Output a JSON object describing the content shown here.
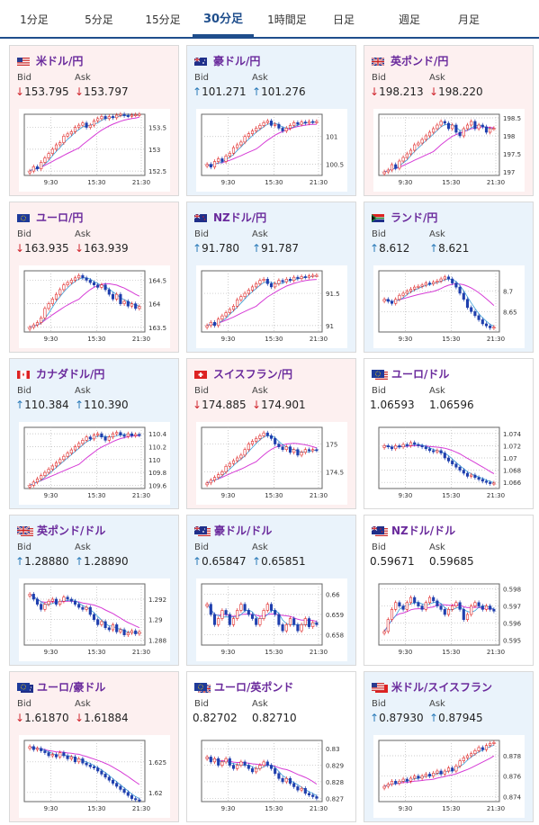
{
  "tabs": [
    {
      "label": "1分足",
      "active": false
    },
    {
      "label": "5分足",
      "active": false
    },
    {
      "label": "15分足",
      "active": false
    },
    {
      "label": "30分足",
      "active": true
    },
    {
      "label": "1時間足",
      "active": false
    },
    {
      "label": "日足",
      "active": false
    },
    {
      "label": "週足",
      "active": false
    },
    {
      "label": "月足",
      "active": false
    }
  ],
  "labels": {
    "bid": "Bid",
    "ask": "Ask"
  },
  "colors": {
    "up_candle": "#1f3fae",
    "down_candle": "#e02828",
    "ma_short": "#3a9fd8",
    "ma_long": "#d63cd6",
    "down_text": "#d0262e",
    "up_text": "#2a7ab8"
  },
  "pairs": [
    {
      "name": "米ドル/円",
      "flag": "flag-us-icon",
      "dir": "down",
      "bid": "153.795",
      "ask": "153.797",
      "chart_data": {
        "type": "candlestick",
        "x_ticks": [
          "9:30",
          "15:30",
          "21:30"
        ],
        "y_ticks": [
          "153.5",
          "153",
          "152.5"
        ],
        "ylim": [
          152.4,
          153.8
        ],
        "close": [
          152.5,
          152.6,
          152.55,
          152.7,
          152.8,
          152.9,
          153.0,
          153.1,
          153.15,
          153.3,
          153.35,
          153.4,
          153.5,
          153.55,
          153.6,
          153.5,
          153.55,
          153.65,
          153.7,
          153.75,
          153.7,
          153.75,
          153.72,
          153.78,
          153.8,
          153.77,
          153.76,
          153.78,
          153.79,
          153.8
        ]
      }
    },
    {
      "name": "豪ドル/円",
      "flag": "flag-au-icon",
      "dir": "up",
      "bid": "101.271",
      "ask": "101.276",
      "chart_data": {
        "type": "candlestick",
        "x_ticks": [
          "9:30",
          "15:30",
          "21:30"
        ],
        "y_ticks": [
          "101",
          "100.5"
        ],
        "ylim": [
          100.3,
          101.4
        ],
        "close": [
          100.5,
          100.45,
          100.55,
          100.6,
          100.55,
          100.65,
          100.7,
          100.8,
          100.85,
          100.9,
          101.0,
          101.05,
          101.1,
          101.15,
          101.2,
          101.25,
          101.28,
          101.2,
          101.22,
          101.15,
          101.1,
          101.15,
          101.2,
          101.25,
          101.22,
          101.26,
          101.24,
          101.27,
          101.26,
          101.27
        ]
      }
    },
    {
      "name": "英ポンド/円",
      "flag": "flag-gb-icon",
      "dir": "down",
      "bid": "198.213",
      "ask": "198.220",
      "chart_data": {
        "type": "candlestick",
        "x_ticks": [
          "9:30",
          "15:30",
          "21:30"
        ],
        "y_ticks": [
          "198.5",
          "198",
          "197.5",
          "197"
        ],
        "ylim": [
          196.9,
          198.6
        ],
        "close": [
          197.0,
          197.05,
          197.2,
          197.1,
          197.3,
          197.4,
          197.5,
          197.6,
          197.75,
          197.8,
          197.9,
          198.0,
          198.1,
          198.2,
          198.3,
          198.4,
          198.35,
          198.2,
          198.3,
          198.1,
          198.0,
          198.2,
          198.3,
          198.4,
          198.2,
          198.3,
          198.25,
          198.1,
          198.2,
          198.21
        ]
      }
    },
    {
      "name": "ユーロ/円",
      "flag": "flag-eu-icon",
      "dir": "down",
      "bid": "163.935",
      "ask": "163.939",
      "chart_data": {
        "type": "candlestick",
        "x_ticks": [
          "9:30",
          "15:30",
          "21:30"
        ],
        "y_ticks": [
          "164.5",
          "164",
          "163.5"
        ],
        "ylim": [
          163.4,
          164.7
        ],
        "close": [
          163.5,
          163.55,
          163.6,
          163.7,
          163.9,
          164.0,
          164.1,
          164.2,
          164.3,
          164.4,
          164.45,
          164.5,
          164.55,
          164.6,
          164.55,
          164.5,
          164.45,
          164.4,
          164.35,
          164.4,
          164.3,
          164.2,
          164.1,
          164.2,
          164.0,
          164.05,
          163.95,
          164.0,
          163.9,
          163.94
        ]
      }
    },
    {
      "name": "NZドル/円",
      "flag": "flag-nz-icon",
      "dir": "up",
      "bid": "91.780",
      "ask": "91.787",
      "chart_data": {
        "type": "candlestick",
        "x_ticks": [
          "9:30",
          "15:30",
          "21:30"
        ],
        "y_ticks": [
          "91.5",
          "91"
        ],
        "ylim": [
          90.9,
          91.85
        ],
        "close": [
          91.0,
          91.05,
          91.0,
          91.1,
          91.15,
          91.2,
          91.25,
          91.3,
          91.4,
          91.45,
          91.5,
          91.55,
          91.6,
          91.65,
          91.7,
          91.72,
          91.65,
          91.6,
          91.65,
          91.7,
          91.68,
          91.72,
          91.7,
          91.75,
          91.73,
          91.76,
          91.75,
          91.77,
          91.78,
          91.78
        ]
      }
    },
    {
      "name": "ランド/円",
      "flag": "flag-za-icon",
      "dir": "up",
      "bid": "8.612",
      "ask": "8.621",
      "chart_data": {
        "type": "candlestick",
        "x_ticks": [
          "9:30",
          "15:30",
          "21:30"
        ],
        "y_ticks": [
          "8.7",
          "8.65"
        ],
        "ylim": [
          8.6,
          8.75
        ],
        "close": [
          8.68,
          8.675,
          8.67,
          8.68,
          8.69,
          8.695,
          8.7,
          8.705,
          8.71,
          8.712,
          8.715,
          8.72,
          8.718,
          8.722,
          8.725,
          8.73,
          8.735,
          8.73,
          8.72,
          8.71,
          8.695,
          8.68,
          8.66,
          8.65,
          8.64,
          8.63,
          8.62,
          8.615,
          8.61,
          8.612
        ]
      }
    },
    {
      "name": "カナダドル/円",
      "flag": "flag-ca-icon",
      "dir": "up",
      "bid": "110.384",
      "ask": "110.390",
      "chart_data": {
        "type": "candlestick",
        "x_ticks": [
          "9:30",
          "15:30",
          "21:30"
        ],
        "y_ticks": [
          "110.4",
          "110.2",
          "110",
          "109.8",
          "109.6"
        ],
        "ylim": [
          109.55,
          110.5
        ],
        "close": [
          109.6,
          109.65,
          109.7,
          109.75,
          109.8,
          109.85,
          109.9,
          109.95,
          110.0,
          110.05,
          110.1,
          110.15,
          110.2,
          110.25,
          110.3,
          110.35,
          110.32,
          110.38,
          110.4,
          110.35,
          110.3,
          110.35,
          110.4,
          110.42,
          110.38,
          110.36,
          110.4,
          110.37,
          110.39,
          110.38
        ]
      }
    },
    {
      "name": "スイスフラン/円",
      "flag": "flag-ch-icon",
      "dir": "down",
      "bid": "174.885",
      "ask": "174.901",
      "chart_data": {
        "type": "candlestick",
        "x_ticks": [
          "9:30",
          "15:30",
          "21:30"
        ],
        "y_ticks": [
          "175",
          "174.5"
        ],
        "ylim": [
          174.2,
          175.3
        ],
        "close": [
          174.3,
          174.35,
          174.4,
          174.45,
          174.5,
          174.6,
          174.65,
          174.7,
          174.75,
          174.8,
          174.9,
          175.0,
          175.05,
          175.1,
          175.15,
          175.2,
          175.15,
          175.1,
          175.0,
          174.95,
          174.9,
          174.95,
          174.85,
          174.9,
          174.8,
          174.85,
          174.9,
          174.88,
          174.9,
          174.89
        ]
      }
    },
    {
      "name": "ユーロ/ドル",
      "flag": "flag-eu-us-icon",
      "dir": "flat",
      "bid": "1.06593",
      "ask": "1.06596",
      "chart_data": {
        "type": "candlestick",
        "x_ticks": [
          "9:30",
          "15:30",
          "21:30"
        ],
        "y_ticks": [
          "1.074",
          "1.072",
          "1.07",
          "1.068",
          "1.066"
        ],
        "ylim": [
          1.065,
          1.075
        ],
        "close": [
          1.072,
          1.0718,
          1.0715,
          1.072,
          1.0718,
          1.0722,
          1.072,
          1.0725,
          1.0722,
          1.072,
          1.0718,
          1.0715,
          1.0712,
          1.071,
          1.0712,
          1.0708,
          1.07,
          1.0695,
          1.069,
          1.0685,
          1.068,
          1.0675,
          1.067,
          1.0672,
          1.0668,
          1.0665,
          1.0662,
          1.066,
          1.0658,
          1.0659
        ]
      }
    },
    {
      "name": "英ポンド/ドル",
      "flag": "flag-gb-us-icon",
      "dir": "up",
      "bid": "1.28880",
      "ask": "1.28890",
      "chart_data": {
        "type": "candlestick",
        "x_ticks": [
          "9:30",
          "15:30",
          "21:30"
        ],
        "y_ticks": [
          "1.292",
          "1.29",
          "1.288"
        ],
        "ylim": [
          1.2875,
          1.2935
        ],
        "close": [
          1.2925,
          1.292,
          1.2915,
          1.291,
          1.2915,
          1.2918,
          1.292,
          1.2915,
          1.2918,
          1.2922,
          1.292,
          1.2918,
          1.2915,
          1.2912,
          1.291,
          1.2912,
          1.2905,
          1.29,
          1.2895,
          1.2898,
          1.2892,
          1.289,
          1.2895,
          1.2888,
          1.289,
          1.2885,
          1.2887,
          1.2889,
          1.2886,
          1.2888
        ]
      }
    },
    {
      "name": "豪ドル/ドル",
      "flag": "flag-au-us-icon",
      "dir": "up",
      "bid": "0.65847",
      "ask": "0.65851",
      "chart_data": {
        "type": "candlestick",
        "x_ticks": [
          "9:30",
          "15:30",
          "21:30"
        ],
        "y_ticks": [
          "0.66",
          "0.659",
          "0.658"
        ],
        "ylim": [
          0.6575,
          0.6605
        ],
        "close": [
          0.6595,
          0.659,
          0.6585,
          0.6588,
          0.6592,
          0.659,
          0.6585,
          0.6588,
          0.6592,
          0.6595,
          0.6592,
          0.659,
          0.6588,
          0.6585,
          0.6588,
          0.6592,
          0.6595,
          0.6592,
          0.659,
          0.6585,
          0.6582,
          0.6585,
          0.6588,
          0.6585,
          0.6582,
          0.6585,
          0.6588,
          0.6584,
          0.6586,
          0.6585
        ]
      }
    },
    {
      "name": "NZドル/ドル",
      "flag": "flag-nz-us-icon",
      "dir": "flat",
      "bid": "0.59671",
      "ask": "0.59685",
      "chart_data": {
        "type": "candlestick",
        "x_ticks": [
          "9:30",
          "15:30",
          "21:30"
        ],
        "y_ticks": [
          "0.598",
          "0.597",
          "0.596",
          "0.595"
        ],
        "ylim": [
          0.5947,
          0.5983
        ],
        "close": [
          0.5955,
          0.5962,
          0.5968,
          0.5972,
          0.597,
          0.5968,
          0.5972,
          0.5975,
          0.5972,
          0.597,
          0.5968,
          0.5972,
          0.5975,
          0.5973,
          0.597,
          0.5968,
          0.5965,
          0.5968,
          0.597,
          0.5972,
          0.5968,
          0.5962,
          0.5965,
          0.597,
          0.5972,
          0.597,
          0.5968,
          0.597,
          0.5968,
          0.5967
        ]
      }
    },
    {
      "name": "ユーロ/豪ドル",
      "flag": "flag-eu-au-icon",
      "dir": "down",
      "bid": "1.61870",
      "ask": "1.61884",
      "chart_data": {
        "type": "candlestick",
        "x_ticks": [
          "9:30",
          "15:30",
          "21:30"
        ],
        "y_ticks": [
          "1.625",
          "1.62"
        ],
        "ylim": [
          1.6185,
          1.6285
        ],
        "close": [
          1.6275,
          1.627,
          1.6272,
          1.6268,
          1.6265,
          1.626,
          1.6262,
          1.6258,
          1.6265,
          1.626,
          1.6255,
          1.6258,
          1.625,
          1.6255,
          1.6248,
          1.6245,
          1.6242,
          1.624,
          1.6235,
          1.623,
          1.6225,
          1.622,
          1.6215,
          1.621,
          1.6205,
          1.62,
          1.6195,
          1.619,
          1.6188,
          1.6187
        ]
      }
    },
    {
      "name": "ユーロ/英ポンド",
      "flag": "flag-eu-gb-icon",
      "dir": "flat",
      "bid": "0.82702",
      "ask": "0.82710",
      "chart_data": {
        "type": "candlestick",
        "x_ticks": [
          "9:30",
          "15:30",
          "21:30"
        ],
        "y_ticks": [
          "0.83",
          "0.829",
          "0.828",
          "0.827"
        ],
        "ylim": [
          0.8268,
          0.8305
        ],
        "close": [
          0.8295,
          0.8292,
          0.8294,
          0.829,
          0.8292,
          0.8294,
          0.829,
          0.8288,
          0.829,
          0.8292,
          0.829,
          0.8288,
          0.8286,
          0.8288,
          0.829,
          0.8292,
          0.829,
          0.8288,
          0.8285,
          0.8282,
          0.828,
          0.8282,
          0.8279,
          0.8277,
          0.8275,
          0.8276,
          0.8273,
          0.8272,
          0.8271,
          0.827
        ]
      }
    },
    {
      "name": "米ドル/スイスフラン",
      "flag": "flag-us-ch-icon",
      "dir": "up",
      "bid": "0.87930",
      "ask": "0.87945",
      "chart_data": {
        "type": "candlestick",
        "x_ticks": [
          "9:30",
          "15:30",
          "21:30"
        ],
        "y_ticks": [
          "0.878",
          "0.876",
          "0.874"
        ],
        "ylim": [
          0.8735,
          0.8795
        ],
        "close": [
          0.875,
          0.8752,
          0.8755,
          0.8753,
          0.8755,
          0.8757,
          0.8755,
          0.8758,
          0.876,
          0.8758,
          0.876,
          0.8762,
          0.876,
          0.8763,
          0.8765,
          0.8762,
          0.8765,
          0.8768,
          0.8765,
          0.877,
          0.8775,
          0.8778,
          0.878,
          0.8782,
          0.8785,
          0.8788,
          0.8786,
          0.879,
          0.8792,
          0.8793
        ]
      }
    }
  ]
}
